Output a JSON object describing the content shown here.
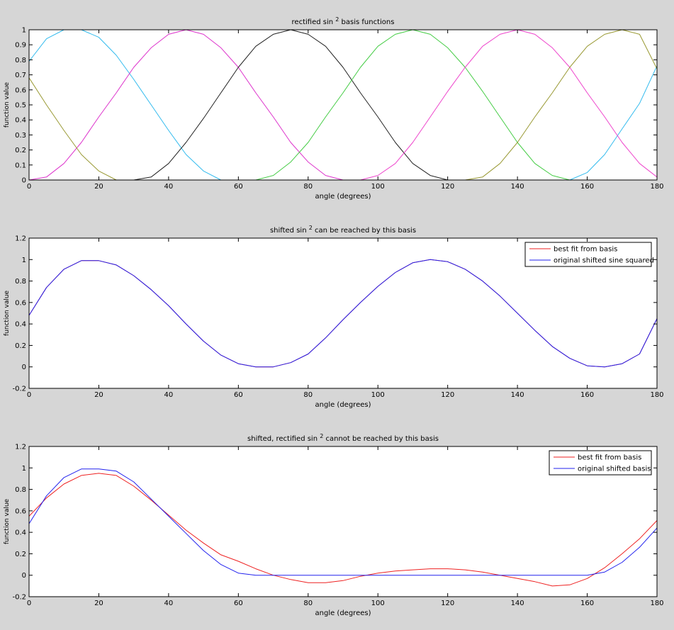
{
  "chart_data": [
    {
      "type": "line",
      "title_prefix": "rectified sin",
      "title_sup": "2",
      "title_suffix": "basis functions",
      "xlabel": "angle (degrees)",
      "ylabel": "function value",
      "xlim": [
        0,
        180
      ],
      "ylim": [
        0,
        1
      ],
      "xticks": [
        0,
        20,
        40,
        60,
        80,
        100,
        120,
        140,
        160,
        180
      ],
      "yticks": [
        0,
        0.1,
        0.2,
        0.3,
        0.4,
        0.5,
        0.6,
        0.7,
        0.8,
        0.9,
        1
      ],
      "ytick_labels": [
        "0",
        "0.1",
        "0.2",
        "0.3",
        "0.4",
        "0.5",
        "0.6",
        "0.7",
        "0.8",
        "0.9",
        "1"
      ],
      "grid": false,
      "legend": null,
      "x": [
        0,
        5,
        10,
        15,
        20,
        25,
        30,
        35,
        40,
        45,
        50,
        55,
        60,
        65,
        70,
        75,
        80,
        85,
        90,
        95,
        100,
        105,
        110,
        115,
        120,
        125,
        130,
        135,
        140,
        145,
        150,
        155,
        160,
        165,
        170,
        175,
        180
      ],
      "series": [
        {
          "color": "#33bbee",
          "values": [
            0.79,
            0.94,
            1.0,
            1.0,
            0.95,
            0.83,
            0.67,
            0.5,
            0.33,
            0.17,
            0.06,
            0.0,
            0.0,
            0.0,
            0.0,
            0.0,
            0.0,
            0.0,
            0.0,
            0.0,
            0.0,
            0.0,
            0.0,
            0.0,
            0.0,
            0.0,
            0.0,
            0.0,
            0.0,
            0.0,
            0.0,
            0.0,
            0.05,
            0.17,
            0.34,
            0.51,
            0.76
          ]
        },
        {
          "color": "#dd33cc",
          "values": [
            0.0,
            0.02,
            0.11,
            0.25,
            0.42,
            0.58,
            0.75,
            0.88,
            0.97,
            1.0,
            0.97,
            0.88,
            0.75,
            0.58,
            0.42,
            0.25,
            0.12,
            0.03,
            0.0,
            0.0,
            0.0,
            0.0,
            0.0,
            0.0,
            0.0,
            0.0,
            0.0,
            0.0,
            0.0,
            0.0,
            0.0,
            0.0,
            0.0,
            0.0,
            0.0,
            0.0,
            0.0
          ]
        },
        {
          "color": "#222222",
          "values": [
            0.0,
            0.0,
            0.0,
            0.0,
            0.0,
            0.0,
            0.0,
            0.02,
            0.11,
            0.25,
            0.41,
            0.58,
            0.75,
            0.89,
            0.97,
            1.0,
            0.97,
            0.89,
            0.75,
            0.58,
            0.42,
            0.25,
            0.11,
            0.03,
            0.0,
            0.0,
            0.0,
            0.0,
            0.0,
            0.0,
            0.0,
            0.0,
            0.0,
            0.0,
            0.0,
            0.0,
            0.0
          ]
        },
        {
          "color": "#44cc44",
          "values": [
            0.0,
            0.0,
            0.0,
            0.0,
            0.0,
            0.0,
            0.0,
            0.0,
            0.0,
            0.0,
            0.0,
            0.0,
            0.0,
            0.0,
            0.03,
            0.12,
            0.25,
            0.42,
            0.58,
            0.75,
            0.89,
            0.97,
            1.0,
            0.97,
            0.88,
            0.75,
            0.59,
            0.42,
            0.25,
            0.11,
            0.03,
            0.0,
            0.0,
            0.0,
            0.0,
            0.0,
            0.0
          ]
        },
        {
          "color": "#ee44cc",
          "values": [
            0.0,
            0.0,
            0.0,
            0.0,
            0.0,
            0.0,
            0.0,
            0.0,
            0.0,
            0.0,
            0.0,
            0.0,
            0.0,
            0.0,
            0.0,
            0.0,
            0.0,
            0.0,
            0.0,
            0.0,
            0.03,
            0.11,
            0.25,
            0.42,
            0.59,
            0.75,
            0.89,
            0.97,
            1.0,
            0.97,
            0.88,
            0.75,
            0.58,
            0.42,
            0.25,
            0.11,
            0.02
          ]
        },
        {
          "color": "#999933",
          "values": [
            0.68,
            0.5,
            0.33,
            0.17,
            0.06,
            0.0,
            0.0,
            0.0,
            0.0,
            0.0,
            0.0,
            0.0,
            0.0,
            0.0,
            0.0,
            0.0,
            0.0,
            0.0,
            0.0,
            0.0,
            0.0,
            0.0,
            0.0,
            0.0,
            0.0,
            0.0,
            0.02,
            0.11,
            0.25,
            0.42,
            0.58,
            0.75,
            0.89,
            0.97,
            1.0,
            0.97,
            0.74
          ]
        }
      ]
    },
    {
      "type": "line",
      "title_prefix": "shifted sin",
      "title_sup": "2",
      "title_suffix": "can be reached by this basis",
      "xlabel": "angle (degrees)",
      "ylabel": "function value",
      "xlim": [
        0,
        180
      ],
      "ylim": [
        -0.2,
        1.2
      ],
      "xticks": [
        0,
        20,
        40,
        60,
        80,
        100,
        120,
        140,
        160,
        180
      ],
      "yticks": [
        -0.2,
        0,
        0.2,
        0.4,
        0.6,
        0.8,
        1,
        1.2
      ],
      "ytick_labels": [
        "-0.2",
        "0",
        "0.2",
        "0.4",
        "0.6",
        "0.8",
        "1",
        "1.2"
      ],
      "grid": false,
      "legend": "top-right",
      "x": [
        0,
        5,
        10,
        15,
        20,
        25,
        30,
        35,
        40,
        45,
        50,
        55,
        60,
        65,
        70,
        75,
        80,
        85,
        90,
        95,
        100,
        105,
        110,
        115,
        120,
        125,
        130,
        135,
        140,
        145,
        150,
        155,
        160,
        165,
        170,
        175,
        180
      ],
      "series": [
        {
          "name": "best fit from basis",
          "color": "#ee2222",
          "values": [
            0.48,
            0.74,
            0.91,
            0.99,
            0.99,
            0.95,
            0.85,
            0.72,
            0.57,
            0.4,
            0.24,
            0.11,
            0.03,
            0.0,
            0.0,
            0.04,
            0.12,
            0.27,
            0.44,
            0.6,
            0.75,
            0.88,
            0.97,
            1.0,
            0.98,
            0.91,
            0.8,
            0.66,
            0.5,
            0.34,
            0.19,
            0.08,
            0.01,
            0.0,
            0.03,
            0.12,
            0.45
          ]
        },
        {
          "name": "original shifted sine squared",
          "color": "#2222ee",
          "values": [
            0.48,
            0.74,
            0.91,
            0.99,
            0.99,
            0.95,
            0.85,
            0.72,
            0.57,
            0.4,
            0.24,
            0.11,
            0.03,
            0.0,
            0.0,
            0.04,
            0.12,
            0.27,
            0.44,
            0.6,
            0.75,
            0.88,
            0.97,
            1.0,
            0.98,
            0.91,
            0.8,
            0.66,
            0.5,
            0.34,
            0.19,
            0.08,
            0.01,
            0.0,
            0.03,
            0.12,
            0.45
          ]
        }
      ]
    },
    {
      "type": "line",
      "title_prefix": "shifted, rectified sin",
      "title_sup": "2",
      "title_suffix": "cannot be reached by this basis",
      "xlabel": "angle (degrees)",
      "ylabel": "function value",
      "xlim": [
        0,
        180
      ],
      "ylim": [
        -0.2,
        1.2
      ],
      "xticks": [
        0,
        20,
        40,
        60,
        80,
        100,
        120,
        140,
        160,
        180
      ],
      "yticks": [
        -0.2,
        0,
        0.2,
        0.4,
        0.6,
        0.8,
        1,
        1.2
      ],
      "ytick_labels": [
        "-0.2",
        "0",
        "0.2",
        "0.4",
        "0.6",
        "0.8",
        "1",
        "1.2"
      ],
      "grid": false,
      "legend": "top-right",
      "x": [
        0,
        5,
        10,
        15,
        20,
        25,
        30,
        35,
        40,
        45,
        50,
        55,
        60,
        65,
        70,
        75,
        80,
        85,
        90,
        95,
        100,
        105,
        110,
        115,
        120,
        125,
        130,
        135,
        140,
        145,
        150,
        155,
        160,
        165,
        170,
        175,
        180
      ],
      "series": [
        {
          "name": "best fit from basis",
          "color": "#ee2222",
          "values": [
            0.55,
            0.72,
            0.85,
            0.93,
            0.95,
            0.93,
            0.83,
            0.7,
            0.56,
            0.42,
            0.3,
            0.19,
            0.13,
            0.06,
            0.0,
            -0.04,
            -0.07,
            -0.07,
            -0.05,
            -0.01,
            0.02,
            0.04,
            0.05,
            0.06,
            0.06,
            0.05,
            0.03,
            0.0,
            -0.03,
            -0.06,
            -0.1,
            -0.09,
            -0.03,
            0.07,
            0.2,
            0.34,
            0.51
          ]
        },
        {
          "name": "original shifted basis",
          "color": "#2222ee",
          "values": [
            0.48,
            0.74,
            0.91,
            0.99,
            0.99,
            0.97,
            0.87,
            0.71,
            0.55,
            0.39,
            0.23,
            0.1,
            0.02,
            0.0,
            0.0,
            0.0,
            0.0,
            0.0,
            0.0,
            0.0,
            0.0,
            0.0,
            0.0,
            0.0,
            0.0,
            0.0,
            0.0,
            0.0,
            0.0,
            0.0,
            0.0,
            0.0,
            0.0,
            0.03,
            0.12,
            0.26,
            0.44
          ]
        }
      ]
    }
  ]
}
